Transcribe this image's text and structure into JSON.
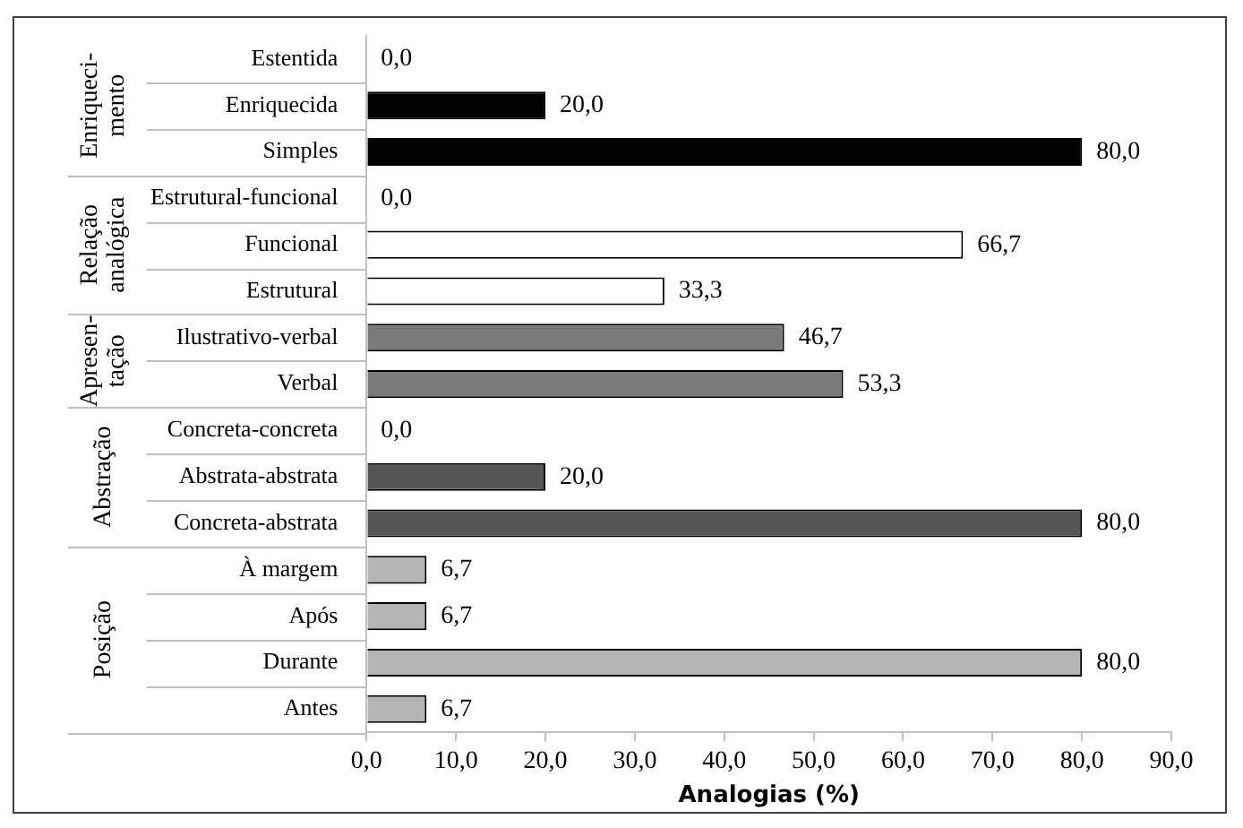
{
  "chart_data": {
    "type": "bar",
    "orientation": "horizontal",
    "xlabel": "Analogias (%)",
    "categories": [
      "Estentida",
      "Enriquecida",
      "Simples",
      "Estrutural-funcional",
      "Funcional",
      "Estrutural",
      "Ilustrativo-verbal",
      "Verbal",
      "Concreta-concreta",
      "Abstrata-abstrata",
      "Concreta-abstrata",
      "À margem",
      "Após",
      "Durante",
      "Antes"
    ],
    "values": [
      0,
      20,
      80,
      0,
      66.7,
      33.3,
      46.7,
      53.3,
      0,
      20,
      80,
      6.7,
      6.7,
      80,
      6.7
    ],
    "value_labels": [
      "0,0",
      "20,0",
      "80,0",
      "0,0",
      "66,7",
      "33,3",
      "46,7",
      "53,3",
      "0,0",
      "20,0",
      "80,0",
      "6,7",
      "6,7",
      "80,0",
      "6,7"
    ],
    "colors": [
      "#000000",
      "#000000",
      "#000000",
      "#ffffff",
      "#ffffff",
      "#ffffff",
      "#7a7a7a",
      "#7a7a7a",
      "#555555",
      "#555555",
      "#555555",
      "#b5b5b5",
      "#b5b5b5",
      "#b5b5b5",
      "#b5b5b5"
    ],
    "xlim": [
      0,
      90
    ],
    "xticks": [
      {
        "value": 0,
        "label": "0,0"
      },
      {
        "value": 10,
        "label": "10,0"
      },
      {
        "value": 20,
        "label": "20,0"
      },
      {
        "value": 30,
        "label": "30,0"
      },
      {
        "value": 40,
        "label": "40,0"
      },
      {
        "value": 50,
        "label": "50,0"
      },
      {
        "value": 60,
        "label": "60,0"
      },
      {
        "value": 70,
        "label": "70,0"
      },
      {
        "value": 80,
        "label": "80,0"
      },
      {
        "value": 90,
        "label": "90,0"
      }
    ],
    "annotations": [
      "Enriqueci-\nmento",
      "Relação\nanalógica",
      "Apresen-\ntação",
      "Abstração",
      "Posição"
    ],
    "grid": false,
    "legend": false
  }
}
